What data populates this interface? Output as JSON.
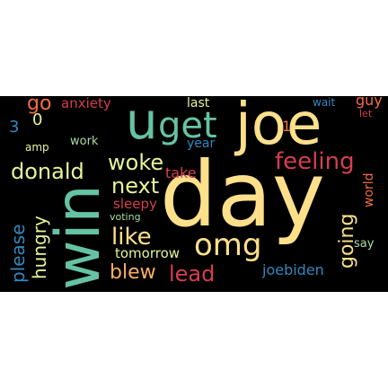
{
  "wordcloud": {
    "words": [
      {
        "text": "day",
        "color": "#fee08b"
      },
      {
        "text": "win",
        "color": "#66c2a5"
      },
      {
        "text": "joe",
        "color": "#fee08b"
      },
      {
        "text": "u",
        "color": "#66c2a5"
      },
      {
        "text": "get",
        "color": "#66c2a5"
      },
      {
        "text": "feeling",
        "color": "#d53e4f"
      },
      {
        "text": "omg",
        "color": "#fee08b"
      },
      {
        "text": "like",
        "color": "#fee08b"
      },
      {
        "text": "next",
        "color": "#e6f598"
      },
      {
        "text": "woke",
        "color": "#e6f598"
      },
      {
        "text": "donald",
        "color": "#e6f598"
      },
      {
        "text": "please",
        "color": "#3288bd"
      },
      {
        "text": "hungry",
        "color": "#e6f598"
      },
      {
        "text": "going",
        "color": "#fee08b"
      },
      {
        "text": "lead",
        "color": "#d53e4f"
      },
      {
        "text": "blew",
        "color": "#fdae61"
      },
      {
        "text": "tomorrow",
        "color": "#e6f598"
      },
      {
        "text": "go",
        "color": "#f46d43"
      },
      {
        "text": "anxiety",
        "color": "#d53e4f"
      },
      {
        "text": "last",
        "color": "#e6f598"
      },
      {
        "text": "year",
        "color": "#3288bd"
      },
      {
        "text": "take",
        "color": "#d53e4f"
      },
      {
        "text": "sleepy",
        "color": "#d53e4f"
      },
      {
        "text": "voting",
        "color": "#abdda4"
      },
      {
        "text": "joebiden",
        "color": "#3288bd"
      },
      {
        "text": "world",
        "color": "#f46d43"
      },
      {
        "text": "say",
        "color": "#abdda4"
      },
      {
        "text": "guy",
        "color": "#f46d43"
      },
      {
        "text": "wait",
        "color": "#3288bd"
      },
      {
        "text": "let",
        "color": "#d53e4f"
      },
      {
        "text": "work",
        "color": "#abdda4"
      },
      {
        "text": "amp",
        "color": "#e6f598"
      },
      {
        "text": "3",
        "color": "#3288bd"
      },
      {
        "text": "0",
        "color": "#e6f598"
      },
      {
        "text": "1",
        "color": "#f46d43"
      }
    ]
  }
}
